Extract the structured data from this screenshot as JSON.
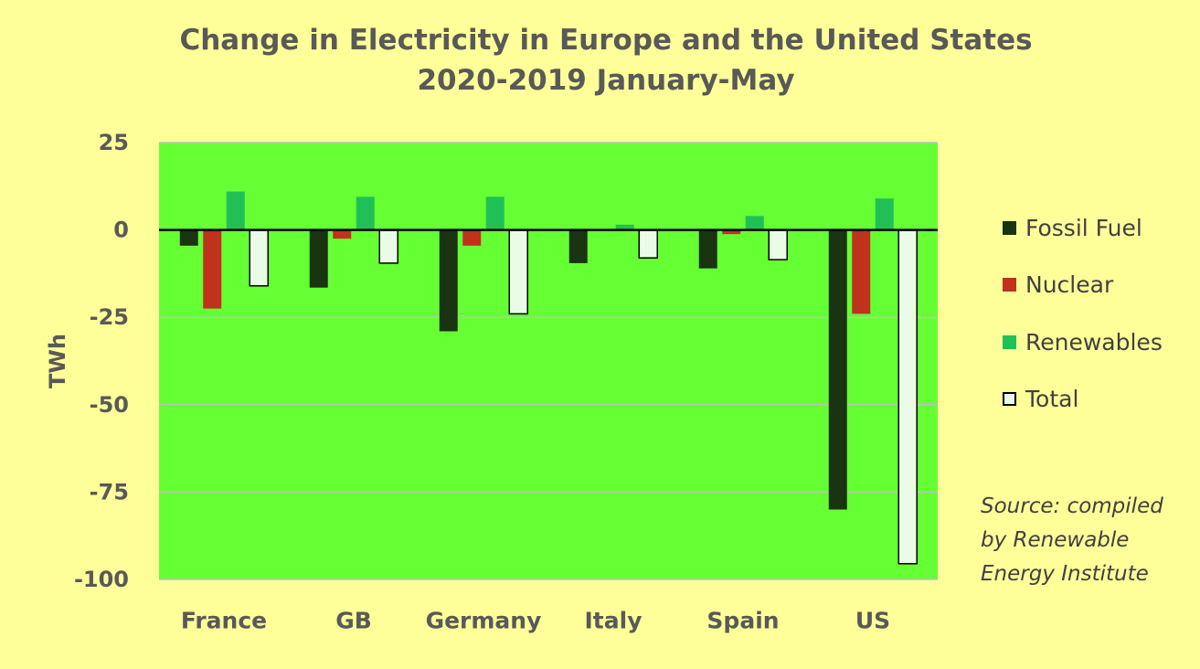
{
  "chart_data": {
    "type": "bar",
    "title": "Change in Electricity in Europe and the United States",
    "subtitle": "2020-2019 January-May",
    "ylabel": "TWh",
    "ylim": [
      -100,
      25
    ],
    "yticks": [
      25,
      0,
      -25,
      -50,
      -75,
      -100
    ],
    "categories": [
      "France",
      "GB",
      "Germany",
      "Italy",
      "Spain",
      "US"
    ],
    "series": [
      {
        "name": "Fossil Fuel",
        "color": "#1a3311",
        "values": [
          -4.5,
          -16.5,
          -29,
          -9.5,
          -11,
          -80
        ]
      },
      {
        "name": "Nuclear",
        "color": "#c0321b",
        "values": [
          -22.5,
          -2.5,
          -4.5,
          0,
          -1.2,
          -24
        ]
      },
      {
        "name": "Renewables",
        "color": "#21c056",
        "values": [
          11,
          9.5,
          9.5,
          1.5,
          4,
          9
        ]
      },
      {
        "name": "Total",
        "color": "#eafce5",
        "values": [
          -16,
          -9.5,
          -24,
          -8,
          -8.5,
          -95.5
        ]
      }
    ],
    "legend_position": "right",
    "grid": true,
    "source": [
      "Source: compiled",
      "by Renewable",
      "Energy Institute"
    ]
  }
}
